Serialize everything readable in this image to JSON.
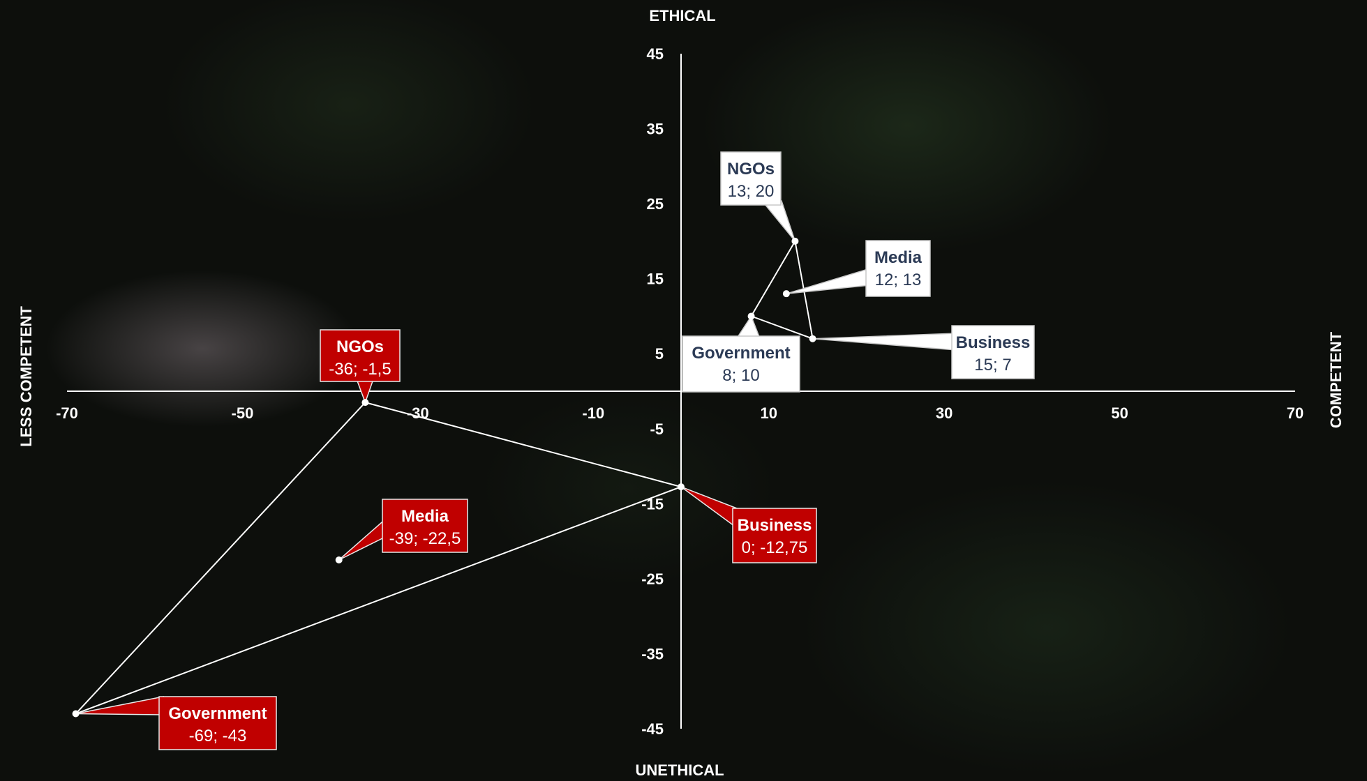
{
  "chart_data": {
    "type": "scatter",
    "xlim": [
      -70,
      70
    ],
    "ylim": [
      -45,
      45
    ],
    "x_ticks": [
      "-70",
      "-50",
      "-30",
      "-10",
      "10",
      "30",
      "50",
      "70"
    ],
    "y_ticks": [
      "45",
      "35",
      "25",
      "15",
      "5",
      "-5",
      "-15",
      "-25",
      "-35",
      "-45"
    ],
    "axis_labels": {
      "top": "ETHICAL",
      "bottom": "UNETHICAL",
      "left": "LESS COMPETENT",
      "right": "COMPETENT"
    },
    "grid": false,
    "colors": {
      "light_series": "#ffffff",
      "dark_series": "#c00000",
      "light_text": "#2b3a55"
    },
    "series": [
      {
        "style": "light",
        "points": [
          {
            "name": "NGOs",
            "x": 13,
            "y": 20,
            "label": "13; 20"
          },
          {
            "name": "Media",
            "x": 12,
            "y": 13,
            "label": "12; 13"
          },
          {
            "name": "Government",
            "x": 8,
            "y": 10,
            "label": "8; 10"
          },
          {
            "name": "Business",
            "x": 15,
            "y": 7,
            "label": "15; 7"
          }
        ]
      },
      {
        "style": "dark",
        "points": [
          {
            "name": "NGOs",
            "x": -36,
            "y": -1.5,
            "label": "-36; -1,5"
          },
          {
            "name": "Media",
            "x": -39,
            "y": -22.5,
            "label": "-39; -22,5"
          },
          {
            "name": "Business",
            "x": 0,
            "y": -12.75,
            "label": "0; -12,75"
          },
          {
            "name": "Government",
            "x": -69,
            "y": -43,
            "label": "-69; -43"
          }
        ]
      }
    ]
  }
}
